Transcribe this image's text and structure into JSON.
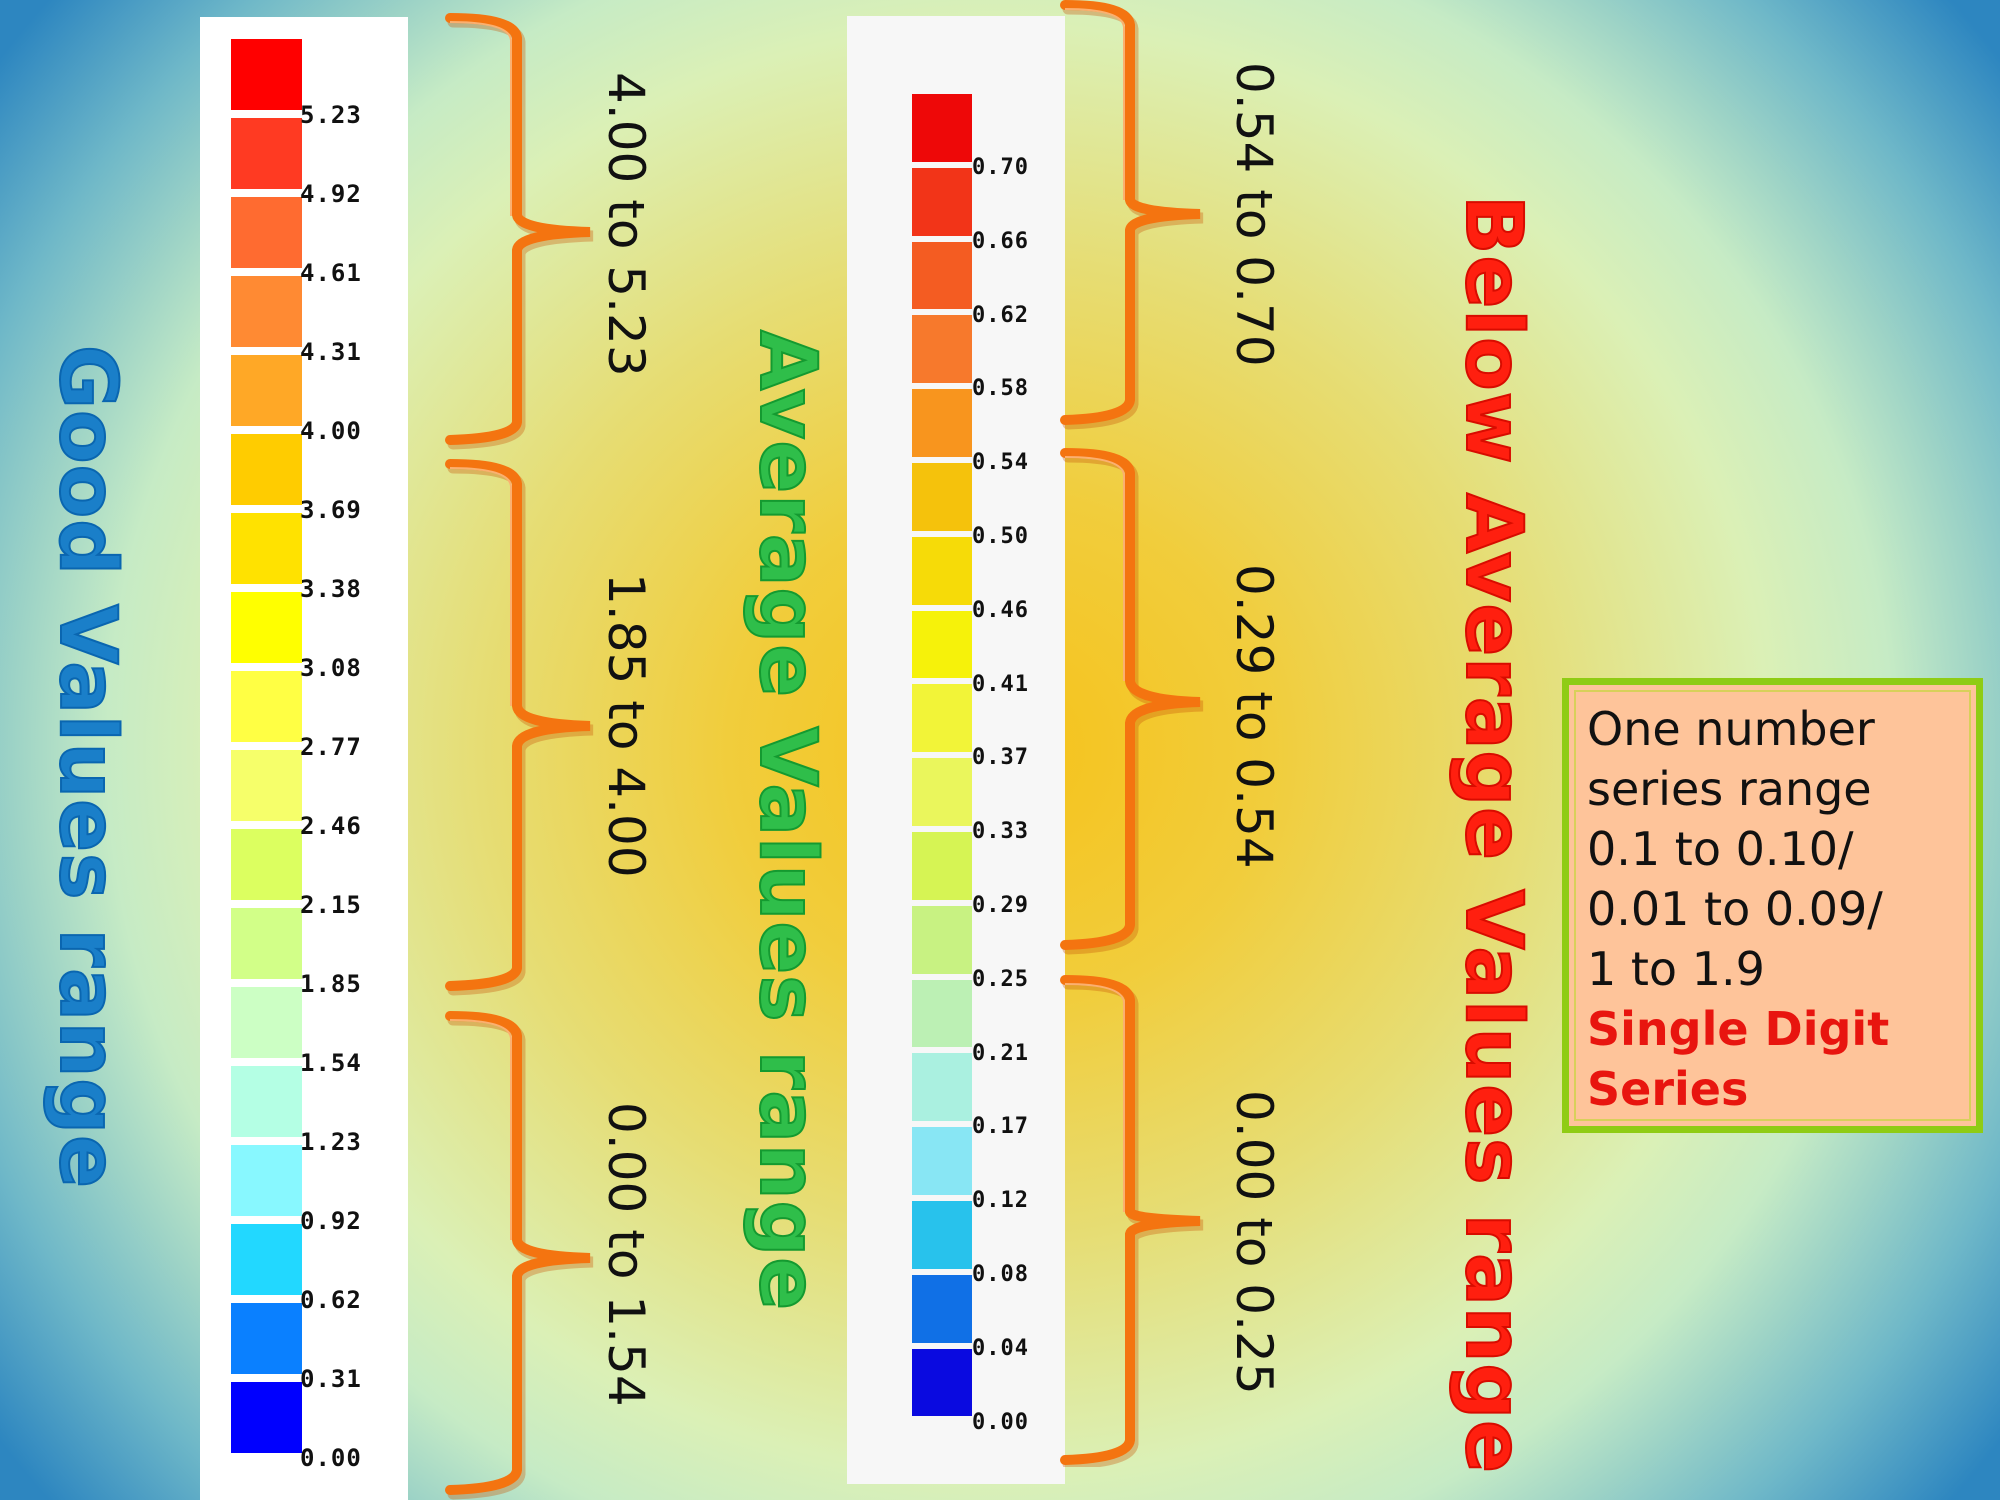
{
  "colors": {
    "good_title": "#1a7fc9",
    "average_title": "#2fbe4a",
    "below_average_title": "#ff1f0f",
    "brace": "#f47410",
    "infobox_bg": "#fec49a",
    "infobox_border": "#8fcc14",
    "infobox_emphasis": "#e8150f"
  },
  "titles": {
    "good": "Good Values range",
    "average": "Average Values range",
    "below_average": "Below Average  Values range"
  },
  "left_legend": {
    "swatch_colors": [
      "#ff0000",
      "#ff3a22",
      "#ff6b30",
      "#ff8a33",
      "#ffa826",
      "#ffcc00",
      "#ffe200",
      "#ffff00",
      "#ffff44",
      "#f6ff6a",
      "#dcff60",
      "#d2ff88",
      "#ccffc4",
      "#b4ffe4",
      "#88f8ff",
      "#22d8ff",
      "#0a80ff",
      "#0000ff"
    ],
    "ticks": [
      "5.23",
      "4.92",
      "4.61",
      "4.31",
      "4.00",
      "3.69",
      "3.38",
      "3.08",
      "2.77",
      "2.46",
      "2.15",
      "1.85",
      "1.54",
      "1.23",
      "0.92",
      "0.62",
      "0.31",
      "0.00"
    ]
  },
  "left_ranges": [
    {
      "label": "4.00 to 5.23"
    },
    {
      "label": "1.85 to 4.00"
    },
    {
      "label": "0.00 to 1.54"
    }
  ],
  "right_legend": {
    "swatch_colors": [
      "#ee0808",
      "#f23418",
      "#f45c22",
      "#f7792c",
      "#f8951e",
      "#f5c20c",
      "#f6db08",
      "#f6f20a",
      "#f2f438",
      "#eaf65c",
      "#d6f454",
      "#c8f282",
      "#bcf0b4",
      "#aaf0e0",
      "#88e6f4",
      "#28c2ec",
      "#1070e6",
      "#0a0ae0"
    ],
    "ticks": [
      "0.70",
      "0.66",
      "0.62",
      "0.58",
      "0.54",
      "0.50",
      "0.46",
      "0.41",
      "0.37",
      "0.33",
      "0.29",
      "0.25",
      "0.21",
      "0.17",
      "0.12",
      "0.08",
      "0.04",
      "0.00"
    ]
  },
  "right_ranges": [
    {
      "label": "0.54 to 0.70"
    },
    {
      "label": "0.29 to 0.54"
    },
    {
      "label": "0.00 to 0.25"
    }
  ],
  "infobox": {
    "lines": [
      "One number",
      "series range",
      "0.1  to 0.10/",
      "0.01  to 0.09/",
      "1 to 1.9"
    ],
    "emphasis": [
      "Single Digit",
      "Series"
    ]
  },
  "chart_data": [
    {
      "type": "heatmap",
      "title": "Good Values range",
      "legend_ticks": [
        5.23,
        4.92,
        4.61,
        4.31,
        4.0,
        3.69,
        3.38,
        3.08,
        2.77,
        2.46,
        2.15,
        1.85,
        1.54,
        1.23,
        0.92,
        0.62,
        0.31,
        0.0
      ],
      "colormap": "red-to-blue (high to low)",
      "ranges": [
        {
          "label": "4.00 to 5.23",
          "min": 4.0,
          "max": 5.23
        },
        {
          "label": "1.85 to 4.00",
          "min": 1.85,
          "max": 4.0
        },
        {
          "label": "0.00 to 1.54",
          "min": 0.0,
          "max": 1.54
        }
      ]
    },
    {
      "type": "heatmap",
      "title": "Below Average  Values range",
      "legend_ticks": [
        0.7,
        0.66,
        0.62,
        0.58,
        0.54,
        0.5,
        0.46,
        0.41,
        0.37,
        0.33,
        0.29,
        0.25,
        0.21,
        0.17,
        0.12,
        0.08,
        0.04,
        0.0
      ],
      "colormap": "red-to-blue (high to low)",
      "ranges": [
        {
          "label": "0.54 to 0.70",
          "min": 0.54,
          "max": 0.7
        },
        {
          "label": "0.29 to 0.54",
          "min": 0.29,
          "max": 0.54
        },
        {
          "label": "0.00 to 0.25",
          "min": 0.0,
          "max": 0.25
        }
      ]
    }
  ]
}
